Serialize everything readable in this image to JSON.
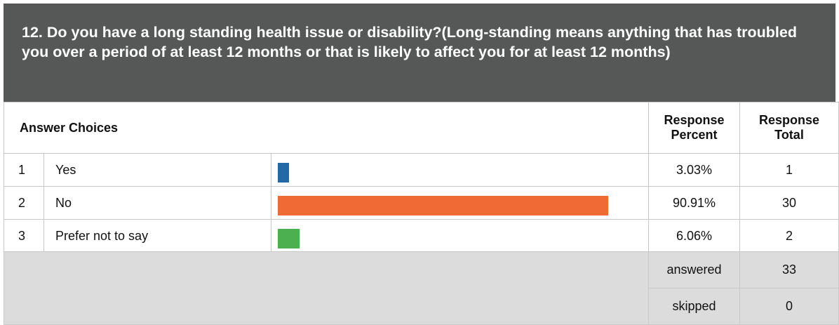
{
  "header": {
    "title": "12. Do you have a long standing health issue or disability?(Long-standing means anything that has troubled you over a period of at least 12 months or that is likely to affect you for at least 12 months)"
  },
  "table": {
    "columns": [
      "Answer Choices",
      "Response Percent",
      "Response Total"
    ],
    "rows": [
      {
        "number": "1",
        "choice": "Yes",
        "percent": 3.03,
        "percent_label": "3.03%",
        "total": 1,
        "color": "#2369a6"
      },
      {
        "number": "2",
        "choice": "No",
        "percent": 90.91,
        "percent_label": "90.91%",
        "total": 30,
        "color": "#f06a35"
      },
      {
        "number": "3",
        "choice": "Prefer not to say",
        "percent": 6.06,
        "percent_label": "6.06%",
        "total": 2,
        "color": "#4caf50"
      }
    ],
    "answered_label": "answered",
    "answered": 33,
    "skipped_label": "skipped",
    "skipped": 0
  }
}
